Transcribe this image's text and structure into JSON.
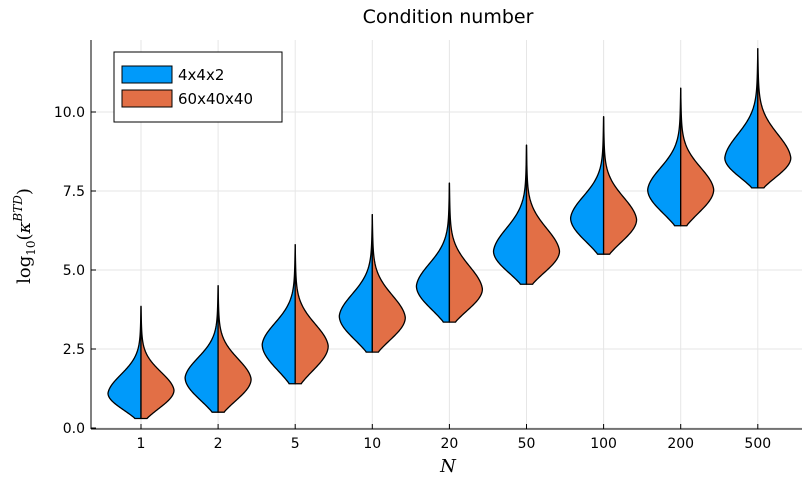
{
  "chart_data": {
    "type": "violin",
    "title": "Condition number",
    "xlabel": "N",
    "ylabel": "log10(κ^BTD)",
    "categories": [
      "1",
      "2",
      "5",
      "10",
      "20",
      "50",
      "100",
      "200",
      "500"
    ],
    "ylim": [
      0,
      12.5
    ],
    "yticks": [
      0.0,
      2.5,
      5.0,
      7.5,
      10.0
    ],
    "ytick_labels": [
      "0.0",
      "2.5",
      "5.0",
      "7.5",
      "10.0"
    ],
    "grid": true,
    "legend_position": "top-left",
    "series": [
      {
        "name": "4x4x2",
        "color": "#009AFA",
        "side": "left",
        "min": [
          0.3,
          0.5,
          1.4,
          2.4,
          3.35,
          4.55,
          5.5,
          6.4,
          7.6
        ],
        "mode": [
          1.1,
          1.6,
          2.65,
          3.55,
          4.5,
          5.6,
          6.65,
          7.55,
          8.55
        ],
        "max": [
          3.85,
          4.5,
          5.8,
          6.75,
          7.75,
          8.95,
          9.85,
          10.75,
          12.0
        ]
      },
      {
        "name": "60x40x40",
        "color": "#E26F46",
        "side": "right",
        "min": [
          0.3,
          0.5,
          1.4,
          2.4,
          3.35,
          4.55,
          5.5,
          6.4,
          7.6
        ],
        "mode": [
          1.2,
          1.55,
          2.6,
          3.5,
          4.4,
          5.6,
          6.6,
          7.55,
          8.55
        ],
        "max": [
          3.85,
          4.5,
          5.8,
          6.75,
          7.75,
          8.95,
          9.85,
          10.75,
          12.0
        ]
      }
    ]
  }
}
